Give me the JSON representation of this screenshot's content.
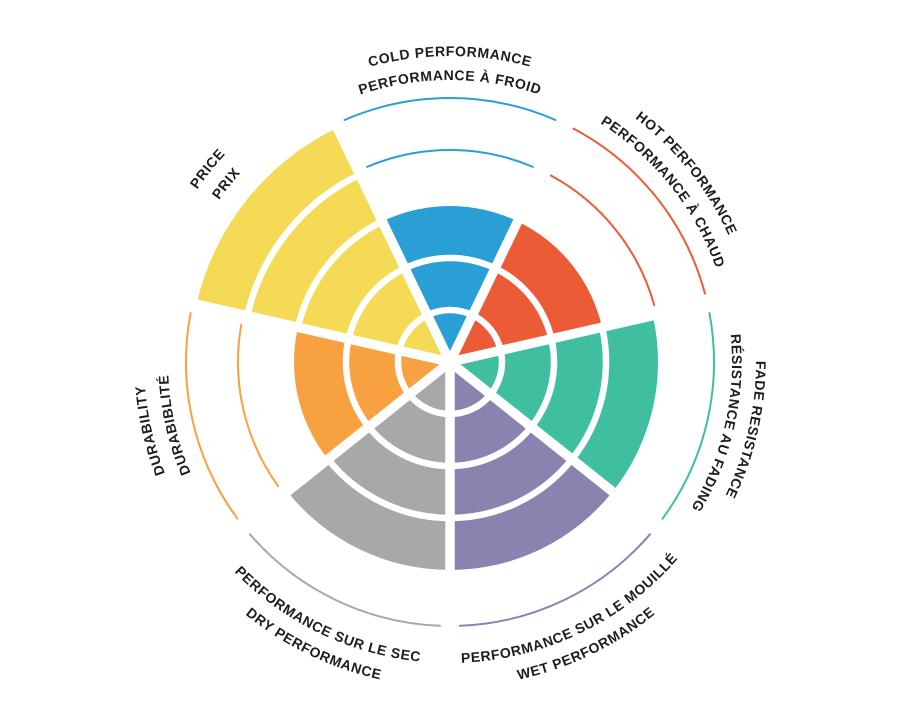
{
  "page": {
    "background_color": "#ffffff",
    "text_color": "#1d1d1f"
  },
  "chart_data": {
    "type": "polar-area",
    "title": "",
    "scale": {
      "min": 0,
      "max": 5,
      "rings": 5
    },
    "legend_position": "labels-around-circle",
    "grid": "white ring dividers inside filled wedges; thin colored arcs for unfilled levels",
    "sectors": [
      {
        "id": "cold-performance",
        "label_outer": "COLD PERFORMANCE",
        "label_inner": "PERFORMANCE À FROID",
        "value": 3,
        "color": "#2a9fd6",
        "label_side": "top"
      },
      {
        "id": "hot-performance",
        "label_outer": "HOT PERFORMANCE",
        "label_inner": "PERFORMANCE À CHAUD",
        "value": 3,
        "color": "#eb5b35",
        "label_side": "top"
      },
      {
        "id": "fade-resistance",
        "label_outer": "FADE RESISTANCE",
        "label_inner": "RÉSISTANCE AU FADING",
        "value": 4,
        "color": "#40bfa0",
        "label_side": "top"
      },
      {
        "id": "wet-performance",
        "label_outer": "WET PERFORMANCE",
        "label_inner": "PERFORMANCE SUR LE MOUILLÉ",
        "value": 4,
        "color": "#8a82af",
        "label_side": "bottom"
      },
      {
        "id": "dry-performance",
        "label_outer": "DRY PERFORMANCE",
        "label_inner": "PERFORMANCE SUR LE SEC",
        "value": 4,
        "color": "#a8a8ab",
        "label_side": "bottom"
      },
      {
        "id": "durability",
        "label_outer": "DURABILITY",
        "label_inner": "DURABIBLITÉ",
        "value": 3,
        "color": "#f8a141",
        "label_side": "top"
      },
      {
        "id": "price",
        "label_outer": "PRICE",
        "label_inner": "PRIX",
        "value": 5,
        "color": "#f5da55",
        "label_side": "top"
      }
    ]
  }
}
